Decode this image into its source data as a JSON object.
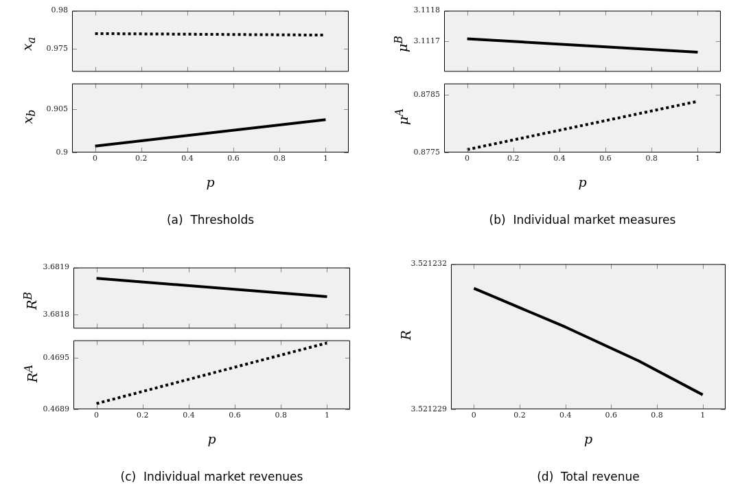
{
  "chart_data": [
    {
      "type": "line",
      "ylabel": "x$_{a}$",
      "x": [
        0,
        1
      ],
      "xlim": [
        -0.1,
        1.1
      ],
      "ylim": [
        0.972,
        0.98
      ],
      "xticks": [
        0,
        0.2,
        0.4,
        0.6,
        0.8,
        1
      ],
      "yticks": [
        0.975,
        0.98
      ],
      "tick_labels": "y",
      "series": [
        {
          "color": "#000000",
          "line_style": "dotted",
          "values": [
            0.977,
            0.9768
          ]
        }
      ]
    },
    {
      "type": "line",
      "ylabel": "x$_{b}$",
      "xlabel": "p",
      "annotations": [
        "(a)  Thresholds"
      ],
      "x": [
        0,
        1
      ],
      "xlim": [
        -0.1,
        1.1
      ],
      "ylim": [
        0.9,
        0.908
      ],
      "xticks": [
        0,
        0.2,
        0.4,
        0.6,
        0.8,
        1
      ],
      "yticks": [
        0.9,
        0.905
      ],
      "series": [
        {
          "color": "#000000",
          "line_style": "solid",
          "values": [
            0.90073,
            0.90381
          ]
        }
      ]
    },
    {
      "type": "line",
      "ylabel": "μ$^{B}$",
      "x": [
        0,
        1
      ],
      "xlim": [
        -0.1,
        1.1
      ],
      "ylim": [
        3.1116,
        3.1118
      ],
      "xticks": [
        0,
        0.2,
        0.4,
        0.6,
        0.8,
        1
      ],
      "yticks": [
        3.1117,
        3.1118
      ],
      "tick_labels": "y",
      "series": [
        {
          "color": "#000000",
          "line_style": "solid",
          "values": [
            3.111708,
            3.111664
          ]
        }
      ]
    },
    {
      "type": "line",
      "ylabel": "μ$^{A}$",
      "xlabel": "p",
      "annotations": [
        "(b)  Individual market measures"
      ],
      "x": [
        0,
        1
      ],
      "xlim": [
        -0.1,
        1.1
      ],
      "ylim": [
        0.8775,
        0.8787
      ],
      "xticks": [
        0,
        0.2,
        0.4,
        0.6,
        0.8,
        1
      ],
      "yticks": [
        0.8775,
        0.8785
      ],
      "series": [
        {
          "color": "#000000",
          "line_style": "dotted",
          "values": [
            0.87755,
            0.87839
          ]
        }
      ]
    },
    {
      "type": "line",
      "ylabel": "R$^{B}$",
      "x": [
        0,
        1
      ],
      "xlim": [
        -0.1,
        1.1
      ],
      "ylim": [
        3.68177,
        3.6819
      ],
      "xticks": [
        0,
        0.2,
        0.4,
        0.6,
        0.8,
        1
      ],
      "yticks": [
        3.6818,
        3.6819
      ],
      "tick_labels": "y",
      "series": [
        {
          "color": "#000000",
          "line_style": "solid",
          "values": [
            3.681877,
            3.681838
          ]
        }
      ]
    },
    {
      "type": "line",
      "ylabel": "R$^{A}$",
      "xlabel": "p",
      "annotations": [
        "(c)  Individual market revenues"
      ],
      "x": [
        0,
        1
      ],
      "xlim": [
        -0.1,
        1.1
      ],
      "ylim": [
        0.4689,
        0.4697
      ],
      "xticks": [
        0,
        0.2,
        0.4,
        0.6,
        0.8,
        1
      ],
      "yticks": [
        0.4689,
        0.4695
      ],
      "series": [
        {
          "color": "#000000",
          "line_style": "dotted",
          "values": [
            0.468966,
            0.46967
          ]
        }
      ]
    },
    {
      "type": "line",
      "ylabel": "R",
      "xlabel": "p",
      "annotations": [
        "(d)  Total revenue"
      ],
      "x": [
        0,
        0.1,
        0.4,
        0.72,
        1
      ],
      "xlim": [
        -0.1,
        1.1
      ],
      "ylim": [
        3.521229,
        3.521232
      ],
      "xticks": [
        0,
        0.2,
        0.4,
        0.6,
        0.8,
        1
      ],
      "yticks": [
        3.521229,
        3.521232
      ],
      "series": [
        {
          "color": "#000000",
          "line_style": "solid",
          "values": [
            3.5212315,
            3.5212313,
            3.5212307,
            3.52123,
            3.5212293
          ]
        }
      ]
    }
  ]
}
